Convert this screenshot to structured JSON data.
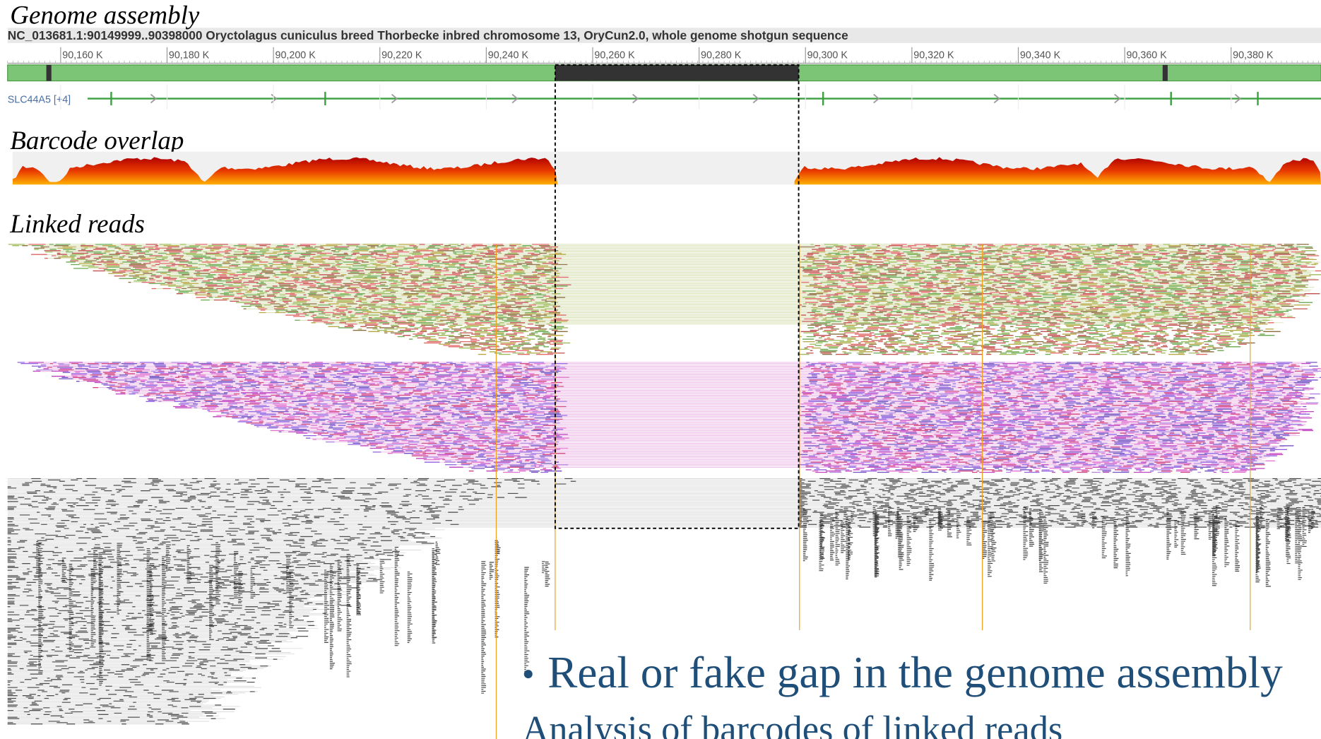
{
  "sections": {
    "assembly": "Genome assembly",
    "overlap": "Barcode overlap",
    "reads": "Linked reads"
  },
  "browser": {
    "header": "NC_013681.1:90149999..90398000 Oryctolagus cuniculus breed Thorbecke inbred chromosome 13, OryCun2.0, whole genome shotgun sequence",
    "ruler": [
      "90,160 K",
      "90,180 K",
      "90,200 K",
      "90,220 K",
      "90,240 K",
      "90,260 K",
      "90,280 K",
      "90,300 K",
      "90,320 K",
      "90,340 K",
      "90,360 K",
      "90,380 K"
    ],
    "gene": "SLC44A5 [+4]"
  },
  "slide": {
    "bullet": "Real or fake gap in the genome assembly",
    "sub": "Analysis of barcodes of linked reads"
  }
}
